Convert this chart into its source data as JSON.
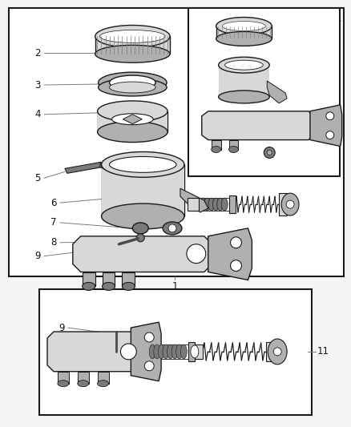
{
  "bg_color": "#f5f5f5",
  "line_color": "#1a1a1a",
  "text_color": "#111111",
  "fig_width": 4.38,
  "fig_height": 5.33,
  "dpi": 100,
  "font_size": 8.5,
  "lw_main": 1.0,
  "lw_thick": 1.6,
  "lw_thin": 0.6,
  "gray_dark": "#4a4a4a",
  "gray_mid": "#7a7a7a",
  "gray_light": "#b0b0b0",
  "gray_fill": "#d8d8d8",
  "gray_bg": "#eeeeee"
}
